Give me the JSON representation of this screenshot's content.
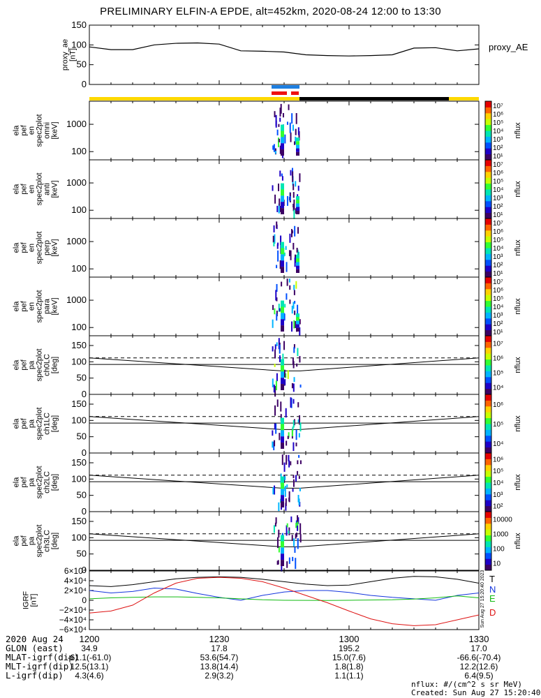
{
  "title": "PRELIMINARY ELFIN-A EPDE, alt=452km, 2020-08-24 12:00 to 13:30",
  "colors": {
    "ok_bar": "#ffd800",
    "black_bar": "#000000",
    "blue_bar": "#1e7fe0",
    "red_bar": "#ee1111",
    "ae_line": "#000000",
    "grf_T": "#000000",
    "grf_N": "#1133dd",
    "grf_E": "#11bb11",
    "grf_D": "#dd1111"
  },
  "chart_data": [
    {
      "type": "line",
      "name": "proxy_ae",
      "ylabel": "proxy_ae [nT]",
      "right_label": "proxy_AE",
      "ylim": [
        0,
        150
      ],
      "yticks": [
        "0",
        "50",
        "100",
        "150"
      ],
      "x": [
        "12:00",
        "12:05",
        "12:10",
        "12:15",
        "12:20",
        "12:25",
        "12:30",
        "12:35",
        "12:40",
        "12:45",
        "12:50",
        "12:55",
        "13:00",
        "13:05",
        "13:10",
        "13:15",
        "13:20",
        "13:25",
        "13:30"
      ],
      "values": [
        95,
        88,
        88,
        100,
        104,
        105,
        102,
        85,
        84,
        82,
        75,
        73,
        72,
        73,
        75,
        92,
        93,
        85,
        90
      ]
    },
    {
      "type": "heatmap",
      "name": "omni",
      "ylabel": "ela pef en spec2plot omni [keV]",
      "yscale": "log",
      "yticks": [
        "100",
        "1000"
      ],
      "colorbar": {
        "label": "nflux",
        "ticks": [
          "10¹",
          "10²",
          "10³",
          "10⁴",
          "10⁵",
          "10⁶",
          "10⁷"
        ]
      }
    },
    {
      "type": "heatmap",
      "name": "anti",
      "ylabel": "ela pef en spec2plot anti [keV]",
      "yscale": "log",
      "yticks": [
        "100",
        "1000"
      ],
      "colorbar": {
        "label": "nflux",
        "ticks": [
          "10¹",
          "10²",
          "10³",
          "10⁴",
          "10⁵",
          "10⁶",
          "10⁷"
        ]
      }
    },
    {
      "type": "heatmap",
      "name": "perp",
      "ylabel": "ela pef en spec2plot perp [keV]",
      "yscale": "log",
      "yticks": [
        "100",
        "1000"
      ],
      "colorbar": {
        "label": "nflux",
        "ticks": [
          "10¹",
          "10²",
          "10³",
          "10⁴",
          "10⁵",
          "10⁶",
          "10⁷"
        ]
      }
    },
    {
      "type": "heatmap",
      "name": "para",
      "ylabel": "ela pef en spec2plot para [keV]",
      "yscale": "log",
      "yticks": [
        "100",
        "1000"
      ],
      "colorbar": {
        "label": "nflux",
        "ticks": [
          "10¹",
          "10²",
          "10³",
          "10⁴",
          "10⁵",
          "10⁶",
          "10⁷"
        ]
      }
    },
    {
      "type": "heatmap",
      "name": "ch0LC",
      "ylabel": "ela pef pa spec2plot ch0LC [deg]",
      "ylim": [
        0,
        180
      ],
      "yticks": [
        "0",
        "50",
        "100",
        "150"
      ],
      "colorbar": {
        "label": "nflux",
        "ticks": [
          "10⁴",
          "10⁵",
          "10⁶",
          "10⁷"
        ]
      }
    },
    {
      "type": "heatmap",
      "name": "ch1LC",
      "ylabel": "ela pef pa spec2plot ch1LC [deg]",
      "ylim": [
        0,
        180
      ],
      "yticks": [
        "0",
        "50",
        "100",
        "150"
      ],
      "colorbar": {
        "label": "nflux",
        "ticks": [
          "10⁴",
          "10⁵",
          "10⁶"
        ]
      }
    },
    {
      "type": "heatmap",
      "name": "ch2LC",
      "ylabel": "ela pef pa spec2plot ch2LC [deg]",
      "ylim": [
        0,
        180
      ],
      "yticks": [
        "0",
        "50",
        "100",
        "150"
      ],
      "colorbar": {
        "label": "nflux",
        "ticks": [
          "10²",
          "10³",
          "10⁴",
          "10⁵",
          "10⁶"
        ]
      }
    },
    {
      "type": "heatmap",
      "name": "ch3LC",
      "ylabel": "ela pef pa spec2plot ch3LC [deg]",
      "ylim": [
        0,
        180
      ],
      "yticks": [
        "0",
        "50",
        "100",
        "150"
      ],
      "colorbar": {
        "label": "nflux",
        "ticks": [
          "10",
          "100",
          "1000",
          "10000"
        ]
      }
    },
    {
      "type": "line",
      "name": "IGRF",
      "ylabel": "IGRF [nT]",
      "ylim": [
        -60000,
        60000
      ],
      "yticks": [
        "−6×10⁴",
        "−4×10⁴",
        "−2×10⁴",
        "0",
        "2×10⁴",
        "4×10⁴",
        "6×10⁴"
      ],
      "legend": [
        "T",
        "N",
        "E",
        "D"
      ],
      "stamp": "Sun Aug 27 15:20:40 2023",
      "x": [
        "12:00",
        "12:05",
        "12:10",
        "12:15",
        "12:20",
        "12:25",
        "12:30",
        "12:35",
        "12:40",
        "12:45",
        "12:50",
        "12:55",
        "13:00",
        "13:05",
        "13:10",
        "13:15",
        "13:20",
        "13:25",
        "13:30"
      ],
      "series": [
        {
          "name": "T",
          "values": [
            30000,
            28000,
            32000,
            38000,
            44000,
            47000,
            48000,
            47000,
            43000,
            38000,
            33000,
            30000,
            31000,
            38000,
            45000,
            49000,
            48000,
            43000,
            35000
          ]
        },
        {
          "name": "N",
          "values": [
            20000,
            15000,
            18000,
            25000,
            23000,
            14000,
            6000,
            0,
            10000,
            17000,
            20000,
            20000,
            16000,
            10000,
            6000,
            3000,
            0,
            10000,
            15000
          ]
        },
        {
          "name": "E",
          "values": [
            3000,
            5000,
            6000,
            7000,
            7000,
            6000,
            5000,
            3000,
            1000,
            0,
            -200,
            -300,
            0,
            500,
            1000,
            2500,
            5000,
            9000,
            5000
          ]
        },
        {
          "name": "D",
          "values": [
            -26000,
            -22000,
            -10000,
            15000,
            35000,
            45000,
            47000,
            45000,
            38000,
            25000,
            10000,
            -5000,
            -22000,
            -38000,
            -48000,
            -52000,
            -50000,
            -40000,
            -30000
          ]
        }
      ]
    }
  ],
  "xaxis": {
    "ticks": [
      "1200",
      "1230",
      "1300",
      "1330"
    ],
    "date": "2020 Aug 24",
    "rows": [
      {
        "label": "GLON (east)",
        "values": [
          "34.9",
          "17.8",
          "195.2",
          "17.0"
        ]
      },
      {
        "label": "MLAT-igrf(dip)",
        "values": [
          "-61.1(-61.0)",
          "53.6(54.7)",
          "15.0(7.6)",
          "-66.6(-70.4)"
        ]
      },
      {
        "label": "MLT-igrf(dip)",
        "values": [
          "12.5(13.1)",
          "13.8(14.4)",
          "1.8(1.8)",
          "12.2(12.6)"
        ]
      },
      {
        "label": "L-igrf(dip)",
        "values": [
          "4.3(4.6)",
          "2.9(3.2)",
          "1.1(1.1)",
          "6.4(9.5)"
        ]
      }
    ]
  },
  "footer": {
    "units": "nflux: #/(cm^2 s sr MeV)",
    "created": "Created: Sun Aug 27 15:20:40 2023"
  }
}
